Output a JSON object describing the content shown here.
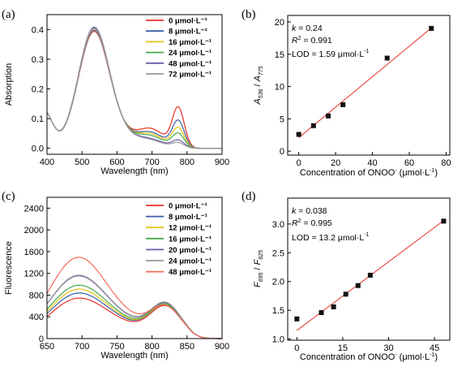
{
  "chart_data": [
    {
      "panel": "(a)",
      "type": "line",
      "xlabel": "Wavelength (nm)",
      "ylabel": "Absorption",
      "xlim": [
        400,
        900
      ],
      "ylim": [
        -0.02,
        0.45
      ],
      "xticks": [
        "400",
        "500",
        "600",
        "700",
        "800",
        "900"
      ],
      "yticks": [
        "0.0",
        "0.1",
        "0.2",
        "0.3",
        "0.4"
      ],
      "legend_position": "top-right",
      "series": [
        {
          "name": "0 μmol·L⁻¹",
          "color": "#e8302a",
          "peak2": 0.131,
          "trough": 0.052
        },
        {
          "name": "8 μmol·L⁻¹",
          "color": "#3a5fa8",
          "peak2": 0.088,
          "trough": 0.04
        },
        {
          "name": "16 μmol·L⁻¹",
          "color": "#e6c319",
          "peak2": 0.064,
          "trough": 0.034
        },
        {
          "name": "24 μmol·L⁻¹",
          "color": "#46a84a",
          "peak2": 0.046,
          "trough": 0.028
        },
        {
          "name": "48 μmol·L⁻¹",
          "color": "#6d5aa8",
          "peak2": 0.024,
          "trough": 0.018
        },
        {
          "name": "72 μmol·L⁻¹",
          "color": "#9a9a9a",
          "peak2": 0.016,
          "trough": 0.014
        }
      ]
    },
    {
      "panel": "(b)",
      "type": "scatter",
      "xlabel_main": "Concentration of ONOO",
      "xlabel_sup": "-",
      "xlabel_unit": "(μmol·L",
      "xlabel_unit_sup": "-1",
      "xlabel_close": ")",
      "ylabel_1": "A",
      "ylabel_1_sub": "536",
      "ylabel_sep": " / ",
      "ylabel_2": "A",
      "ylabel_2_sub": "775",
      "xlim": [
        -6,
        82
      ],
      "ylim": [
        -0.6,
        21
      ],
      "xticks": [
        "0",
        "20",
        "40",
        "60",
        "80"
      ],
      "yticks": [
        "0",
        "5",
        "10",
        "15",
        "20"
      ],
      "x": [
        0,
        8,
        16,
        24,
        48,
        72
      ],
      "y": [
        2.6,
        3.95,
        5.45,
        7.2,
        14.4,
        19.0
      ],
      "fit": {
        "x": [
          0,
          73
        ],
        "y": [
          2.1,
          19.3
        ],
        "color": "#e8302a"
      },
      "ann_k_label": "k",
      "ann_k_value": " = 0.24",
      "ann_r_label": "R",
      "ann_r_sup": "2",
      "ann_r_value": " = 0.991",
      "ann_lod": "LOD = 1.59 μmol·L",
      "ann_lod_sup": "-1"
    },
    {
      "panel": "(c)",
      "type": "line",
      "xlabel": "Wavelength (nm)",
      "ylabel": "Fluorescence",
      "xlim": [
        650,
        900
      ],
      "ylim": [
        0,
        2600
      ],
      "xticks": [
        "650",
        "700",
        "750",
        "800",
        "850",
        "900"
      ],
      "yticks": [
        "0",
        "400",
        "800",
        "1200",
        "1600",
        "2000",
        "2400"
      ],
      "legend_position": "top-right",
      "series": [
        {
          "name": "0 μmol·L⁻¹",
          "color": "#e8302a",
          "peak1": 700,
          "valley": 320,
          "peak2": 545
        },
        {
          "name": "8 μmol·L⁻¹",
          "color": "#3a5fa8",
          "peak1": 790,
          "valley": 345,
          "peak2": 560
        },
        {
          "name": "12 μmol·L⁻¹",
          "color": "#e6c319",
          "peak1": 860,
          "valley": 360,
          "peak2": 560
        },
        {
          "name": "16 μmol·L⁻¹",
          "color": "#46a84a",
          "peak1": 930,
          "valley": 380,
          "peak2": 565
        },
        {
          "name": "20 μmol·L⁻¹",
          "color": "#6d5aa8",
          "peak1": 1100,
          "valley": 400,
          "peak2": 580
        },
        {
          "name": "24 μmol·L⁻¹",
          "color": "#9a9a9a",
          "peak1": 1110,
          "valley": 410,
          "peak2": 590
        },
        {
          "name": "48 μmol·L⁻¹",
          "color": "#f26a5a",
          "peak1": 1430,
          "valley": 480,
          "peak2": 520
        }
      ]
    },
    {
      "panel": "(d)",
      "type": "scatter",
      "xlabel_main": "Concentration of ONOO",
      "xlabel_sup": "-",
      "xlabel_unit": "(μmol·L",
      "xlabel_unit_sup": "-1",
      "xlabel_close": ")",
      "ylabel_1": "F",
      "ylabel_1_sub": "695",
      "ylabel_sep": " / ",
      "ylabel_2": "F",
      "ylabel_2_sub": "825",
      "xlim": [
        -3,
        50
      ],
      "ylim": [
        0.98,
        3.45
      ],
      "xticks": [
        "0",
        "15",
        "30",
        "45"
      ],
      "yticks": [
        "1.0",
        "1.5",
        "2.0",
        "2.5",
        "3.0"
      ],
      "x": [
        0,
        8,
        12,
        16,
        20,
        24,
        48
      ],
      "y": [
        1.35,
        1.46,
        1.56,
        1.78,
        1.93,
        2.11,
        3.05
      ],
      "fit": {
        "x": [
          0,
          48
        ],
        "y": [
          1.15,
          3.06
        ],
        "color": "#e8302a"
      },
      "ann_k_label": "k",
      "ann_k_value": " = 0.038",
      "ann_r_label": "R",
      "ann_r_sup": "2",
      "ann_r_value": " = 0.995",
      "ann_lod": "LOD = 13.2 μmol·L",
      "ann_lod_sup": "-1"
    }
  ]
}
